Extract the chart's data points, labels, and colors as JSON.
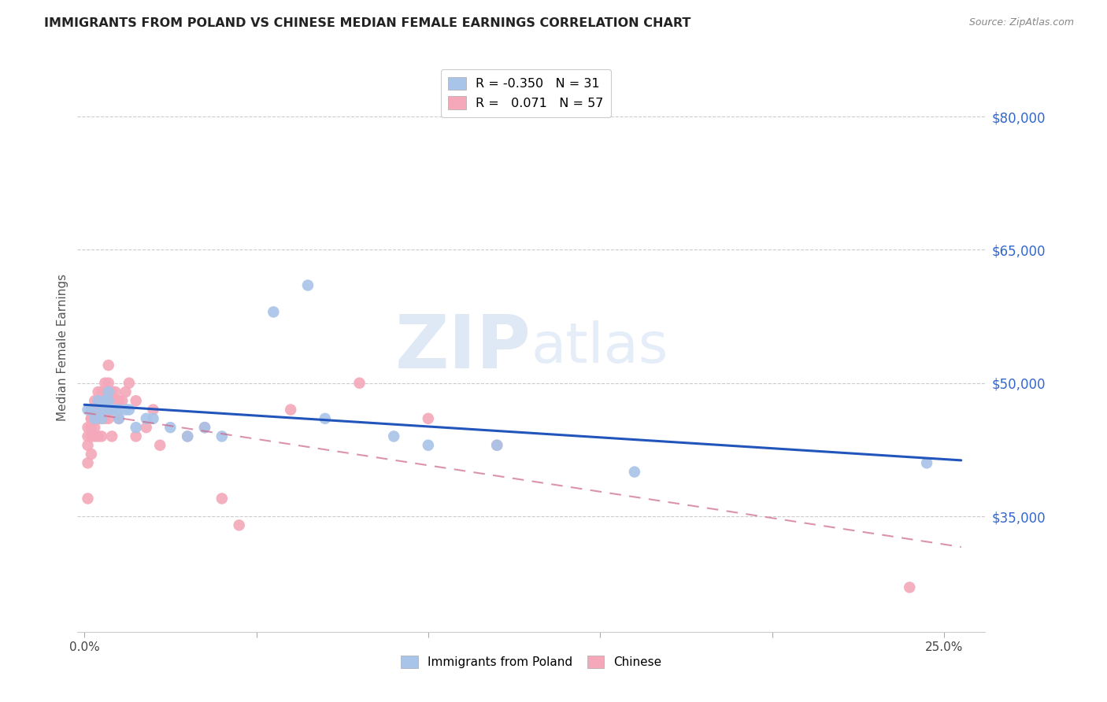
{
  "title": "IMMIGRANTS FROM POLAND VS CHINESE MEDIAN FEMALE EARNINGS CORRELATION CHART",
  "source": "Source: ZipAtlas.com",
  "ylabel": "Median Female Earnings",
  "ytick_labels": [
    "$35,000",
    "$50,000",
    "$65,000",
    "$80,000"
  ],
  "ytick_values": [
    35000,
    50000,
    65000,
    80000
  ],
  "ymin": 22000,
  "ymax": 86000,
  "xmin": -0.002,
  "xmax": 0.262,
  "poland_color": "#a8c4e8",
  "chinese_color": "#f4a8ba",
  "poland_line_color": "#2255bb",
  "chinese_line_color": "#cc6688",
  "watermark_zip": "ZIP",
  "watermark_atlas": "atlas",
  "poland_scatter_x": [
    0.001,
    0.002,
    0.003,
    0.004,
    0.005,
    0.005,
    0.006,
    0.006,
    0.007,
    0.007,
    0.008,
    0.009,
    0.01,
    0.01,
    0.012,
    0.013,
    0.015,
    0.018,
    0.02,
    0.025,
    0.03,
    0.035,
    0.04,
    0.055,
    0.065,
    0.07,
    0.09,
    0.1,
    0.12,
    0.16,
    0.245
  ],
  "poland_scatter_y": [
    47000,
    47000,
    46000,
    48000,
    47000,
    46000,
    48000,
    47000,
    48000,
    49000,
    47000,
    47000,
    46000,
    47000,
    47000,
    47000,
    45000,
    46000,
    46000,
    45000,
    44000,
    45000,
    44000,
    58000,
    61000,
    46000,
    44000,
    43000,
    43000,
    40000,
    41000
  ],
  "chinese_scatter_x": [
    0.001,
    0.001,
    0.001,
    0.001,
    0.001,
    0.002,
    0.002,
    0.002,
    0.002,
    0.002,
    0.002,
    0.003,
    0.003,
    0.003,
    0.003,
    0.003,
    0.004,
    0.004,
    0.004,
    0.004,
    0.004,
    0.005,
    0.005,
    0.005,
    0.005,
    0.005,
    0.006,
    0.006,
    0.006,
    0.006,
    0.007,
    0.007,
    0.007,
    0.008,
    0.008,
    0.008,
    0.008,
    0.009,
    0.01,
    0.01,
    0.011,
    0.012,
    0.013,
    0.015,
    0.015,
    0.018,
    0.02,
    0.022,
    0.03,
    0.035,
    0.04,
    0.045,
    0.06,
    0.08,
    0.1,
    0.12,
    0.24
  ],
  "chinese_scatter_y": [
    45000,
    44000,
    43000,
    41000,
    37000,
    47000,
    46000,
    46000,
    45000,
    44000,
    42000,
    48000,
    47000,
    46000,
    45000,
    44000,
    49000,
    48000,
    47000,
    46000,
    44000,
    49000,
    48000,
    47000,
    46000,
    44000,
    50000,
    49000,
    48000,
    46000,
    52000,
    50000,
    46000,
    49000,
    48000,
    47000,
    44000,
    49000,
    48000,
    46000,
    48000,
    49000,
    50000,
    48000,
    44000,
    45000,
    47000,
    43000,
    44000,
    45000,
    37000,
    34000,
    47000,
    50000,
    46000,
    43000,
    27000
  ],
  "xtick_positions": [
    0.0,
    0.05,
    0.1,
    0.15,
    0.2,
    0.25
  ],
  "xtick_labels": [
    "0.0%",
    "",
    "",
    "",
    "",
    "25.0%"
  ]
}
